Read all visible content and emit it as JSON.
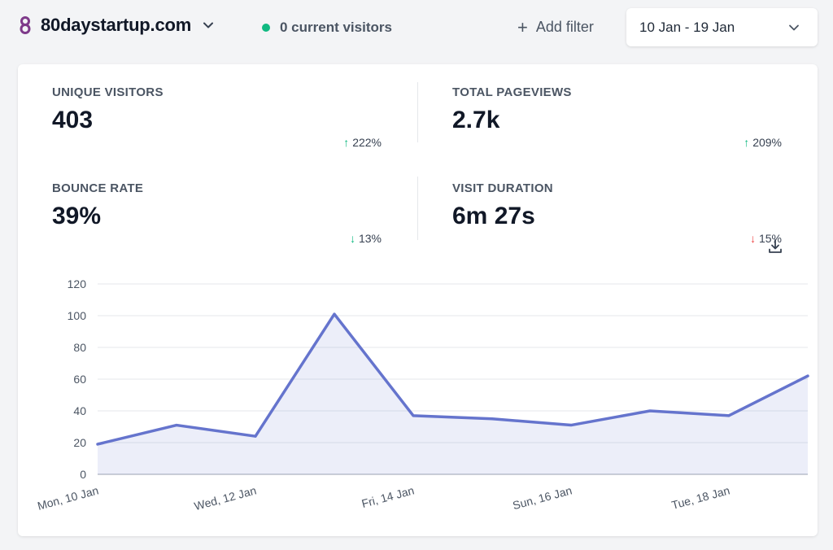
{
  "header": {
    "site_name": "80daystartup.com",
    "current_visitors": "0 current visitors",
    "add_filter": "Add filter",
    "date_range": "10 Jan - 19 Jan"
  },
  "stats": [
    {
      "label": "UNIQUE VISITORS",
      "value": "403",
      "arrow": "↑",
      "change": "222%",
      "direction": "up"
    },
    {
      "label": "TOTAL PAGEVIEWS",
      "value": "2.7k",
      "arrow": "↑",
      "change": "209%",
      "direction": "up"
    },
    {
      "label": "BOUNCE RATE",
      "value": "39%",
      "arrow": "↓",
      "change": "13%",
      "direction": "down-good"
    },
    {
      "label": "VISIT DURATION",
      "value": "6m 27s",
      "arrow": "↓",
      "change": "15%",
      "direction": "down-bad"
    }
  ],
  "colors": {
    "accent": "#6574cd",
    "up": "#10b981",
    "down": "#ef4444",
    "live_dot": "#10b981"
  },
  "chart_data": {
    "type": "area",
    "x": [
      "Mon, 10 Jan",
      "Tue, 11 Jan",
      "Wed, 12 Jan",
      "Thu, 13 Jan",
      "Fri, 14 Jan",
      "Sat, 15 Jan",
      "Sun, 16 Jan",
      "Mon, 17 Jan",
      "Tue, 18 Jan",
      "Wed, 19 Jan"
    ],
    "x_tick_labels": [
      "Mon, 10 Jan",
      "Wed, 12 Jan",
      "Fri, 14 Jan",
      "Sun, 16 Jan",
      "Tue, 18 Jan"
    ],
    "series": [
      {
        "values": [
          19,
          31,
          24,
          101,
          37,
          35,
          31,
          40,
          37,
          62
        ]
      }
    ],
    "yticks": [
      0,
      20,
      40,
      60,
      80,
      100,
      120
    ],
    "ylim": [
      0,
      120
    ],
    "grid": true,
    "color": "#6574cd"
  }
}
